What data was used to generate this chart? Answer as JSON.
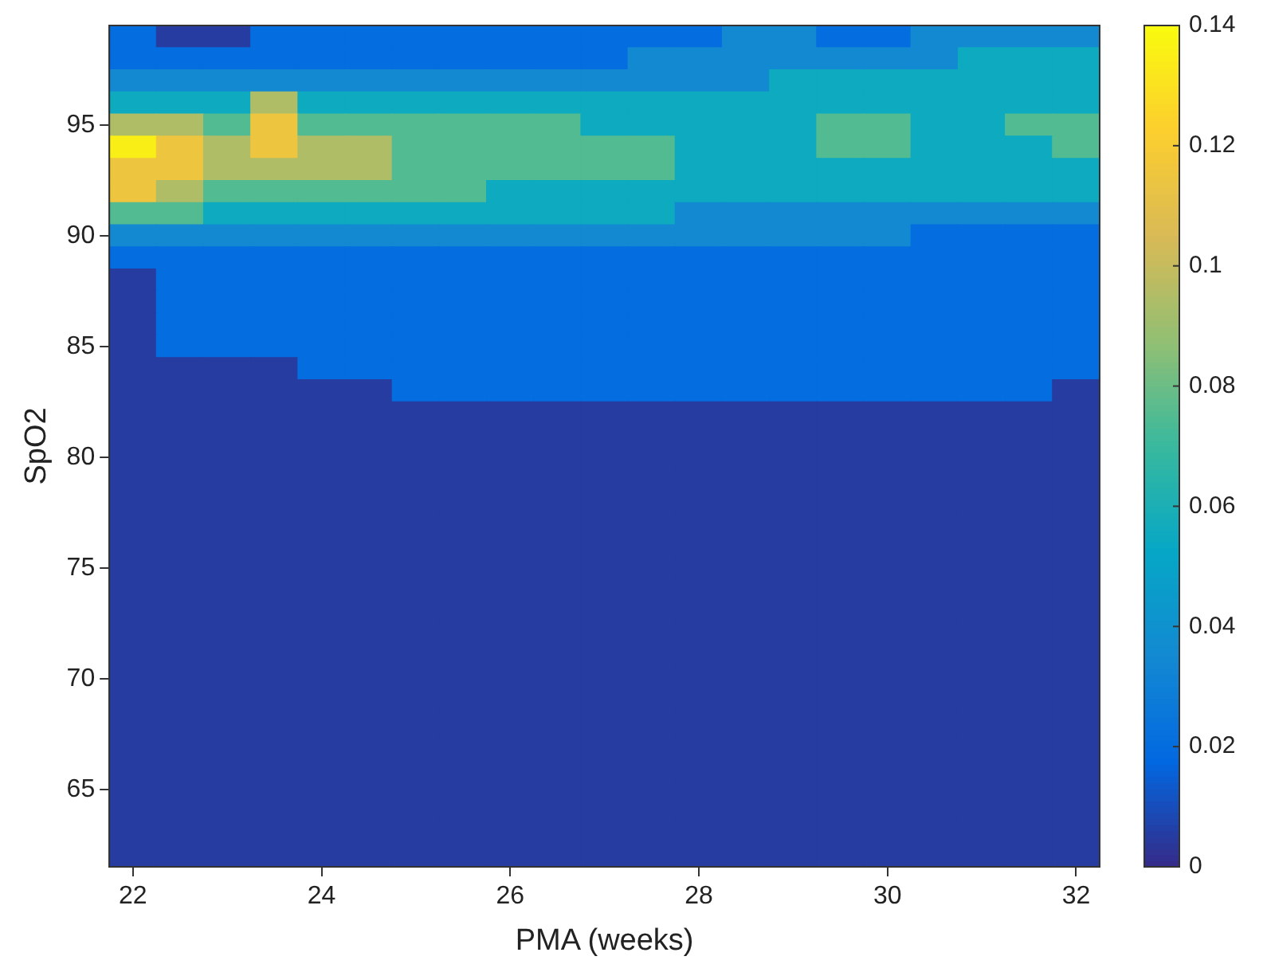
{
  "chart_data": {
    "type": "heatmap",
    "xlabel": "PMA (weeks)",
    "ylabel": "SpO2",
    "categories": [
      "22",
      null,
      null,
      null,
      "24",
      null,
      null,
      null,
      "26",
      null,
      null,
      null,
      "28",
      null,
      null,
      null,
      "30",
      null,
      null,
      null,
      "32"
    ],
    "y_categories": [
      null,
      null,
      null,
      null,
      "95",
      null,
      null,
      null,
      null,
      "90",
      null,
      null,
      null,
      null,
      "85",
      null,
      null,
      null,
      null,
      "80",
      null,
      null,
      null,
      null,
      "75",
      null,
      null,
      null,
      null,
      "70",
      null,
      null,
      null,
      null,
      "65",
      null,
      null,
      null
    ],
    "cells": [
      [
        0.02,
        0.005,
        0.005,
        0.02,
        0.02,
        0.02,
        0.02,
        0.02,
        0.02,
        0.02,
        0.02,
        0.02,
        0.02,
        0.035,
        0.035,
        0.02,
        0.02,
        0.035,
        0.035,
        0.035,
        0.035
      ],
      [
        0.02,
        0.02,
        0.02,
        0.02,
        0.02,
        0.02,
        0.02,
        0.02,
        0.02,
        0.02,
        0.02,
        0.035,
        0.035,
        0.035,
        0.035,
        0.035,
        0.035,
        0.035,
        0.055,
        0.055,
        0.055
      ],
      [
        0.035,
        0.035,
        0.035,
        0.035,
        0.035,
        0.035,
        0.035,
        0.035,
        0.035,
        0.035,
        0.035,
        0.035,
        0.035,
        0.035,
        0.055,
        0.055,
        0.055,
        0.055,
        0.055,
        0.055,
        0.055
      ],
      [
        0.055,
        0.055,
        0.055,
        0.095,
        0.055,
        0.055,
        0.055,
        0.055,
        0.055,
        0.055,
        0.055,
        0.055,
        0.055,
        0.055,
        0.055,
        0.055,
        0.055,
        0.055,
        0.055,
        0.055,
        0.055
      ],
      [
        0.095,
        0.095,
        0.075,
        0.115,
        0.075,
        0.075,
        0.075,
        0.075,
        0.075,
        0.075,
        0.055,
        0.055,
        0.055,
        0.055,
        0.055,
        0.075,
        0.075,
        0.055,
        0.055,
        0.075,
        0.075
      ],
      [
        0.135,
        0.115,
        0.095,
        0.115,
        0.095,
        0.095,
        0.075,
        0.075,
        0.075,
        0.075,
        0.075,
        0.075,
        0.055,
        0.055,
        0.055,
        0.075,
        0.075,
        0.055,
        0.055,
        0.055,
        0.075
      ],
      [
        0.115,
        0.115,
        0.095,
        0.095,
        0.095,
        0.095,
        0.075,
        0.075,
        0.075,
        0.075,
        0.075,
        0.075,
        0.055,
        0.055,
        0.055,
        0.055,
        0.055,
        0.055,
        0.055,
        0.055,
        0.055
      ],
      [
        0.115,
        0.095,
        0.075,
        0.075,
        0.075,
        0.075,
        0.075,
        0.075,
        0.055,
        0.055,
        0.055,
        0.055,
        0.055,
        0.055,
        0.055,
        0.055,
        0.055,
        0.055,
        0.055,
        0.055,
        0.055
      ],
      [
        0.075,
        0.075,
        0.055,
        0.055,
        0.055,
        0.055,
        0.055,
        0.055,
        0.055,
        0.055,
        0.055,
        0.055,
        0.035,
        0.035,
        0.035,
        0.035,
        0.035,
        0.035,
        0.035,
        0.035,
        0.035
      ],
      [
        0.035,
        0.035,
        0.035,
        0.035,
        0.035,
        0.035,
        0.035,
        0.035,
        0.035,
        0.035,
        0.035,
        0.035,
        0.035,
        0.035,
        0.035,
        0.035,
        0.035,
        0.02,
        0.02,
        0.02,
        0.02
      ],
      [
        0.02,
        0.02,
        0.02,
        0.02,
        0.02,
        0.02,
        0.02,
        0.02,
        0.02,
        0.02,
        0.02,
        0.02,
        0.02,
        0.02,
        0.02,
        0.02,
        0.02,
        0.02,
        0.02,
        0.02,
        0.02
      ],
      [
        0.005,
        0.02,
        0.02,
        0.02,
        0.02,
        0.02,
        0.02,
        0.02,
        0.02,
        0.02,
        0.02,
        0.02,
        0.02,
        0.02,
        0.02,
        0.02,
        0.02,
        0.02,
        0.02,
        0.02,
        0.02
      ],
      [
        0.005,
        0.02,
        0.02,
        0.02,
        0.02,
        0.02,
        0.02,
        0.02,
        0.02,
        0.02,
        0.02,
        0.02,
        0.02,
        0.02,
        0.02,
        0.02,
        0.02,
        0.02,
        0.02,
        0.02,
        0.02
      ],
      [
        0.005,
        0.02,
        0.02,
        0.02,
        0.02,
        0.02,
        0.02,
        0.02,
        0.02,
        0.02,
        0.02,
        0.02,
        0.02,
        0.02,
        0.02,
        0.02,
        0.02,
        0.02,
        0.02,
        0.02,
        0.02
      ],
      [
        0.005,
        0.02,
        0.02,
        0.02,
        0.02,
        0.02,
        0.02,
        0.02,
        0.02,
        0.02,
        0.02,
        0.02,
        0.02,
        0.02,
        0.02,
        0.02,
        0.02,
        0.02,
        0.02,
        0.02,
        0.02
      ],
      [
        0.005,
        0.005,
        0.005,
        0.005,
        0.02,
        0.02,
        0.02,
        0.02,
        0.02,
        0.02,
        0.02,
        0.02,
        0.02,
        0.02,
        0.02,
        0.02,
        0.02,
        0.02,
        0.02,
        0.02,
        0.02
      ],
      [
        0.005,
        0.005,
        0.005,
        0.005,
        0.005,
        0.005,
        0.02,
        0.02,
        0.02,
        0.02,
        0.02,
        0.02,
        0.02,
        0.02,
        0.02,
        0.02,
        0.02,
        0.02,
        0.02,
        0.02,
        0.005
      ],
      [
        0.005,
        0.005,
        0.005,
        0.005,
        0.005,
        0.005,
        0.005,
        0.005,
        0.005,
        0.005,
        0.005,
        0.005,
        0.005,
        0.005,
        0.005,
        0.005,
        0.005,
        0.005,
        0.005,
        0.005,
        0.005
      ],
      [
        0.005,
        0.005,
        0.005,
        0.005,
        0.005,
        0.005,
        0.005,
        0.005,
        0.005,
        0.005,
        0.005,
        0.005,
        0.005,
        0.005,
        0.005,
        0.005,
        0.005,
        0.005,
        0.005,
        0.005,
        0.005
      ],
      [
        0.005,
        0.005,
        0.005,
        0.005,
        0.005,
        0.005,
        0.005,
        0.005,
        0.005,
        0.005,
        0.005,
        0.005,
        0.005,
        0.005,
        0.005,
        0.005,
        0.005,
        0.005,
        0.005,
        0.005,
        0.005
      ],
      [
        0.005,
        0.005,
        0.005,
        0.005,
        0.005,
        0.005,
        0.005,
        0.005,
        0.005,
        0.005,
        0.005,
        0.005,
        0.005,
        0.005,
        0.005,
        0.005,
        0.005,
        0.005,
        0.005,
        0.005,
        0.005
      ],
      [
        0.005,
        0.005,
        0.005,
        0.005,
        0.005,
        0.005,
        0.005,
        0.005,
        0.005,
        0.005,
        0.005,
        0.005,
        0.005,
        0.005,
        0.005,
        0.005,
        0.005,
        0.005,
        0.005,
        0.005,
        0.005
      ],
      [
        0.005,
        0.005,
        0.005,
        0.005,
        0.005,
        0.005,
        0.005,
        0.005,
        0.005,
        0.005,
        0.005,
        0.005,
        0.005,
        0.005,
        0.005,
        0.005,
        0.005,
        0.005,
        0.005,
        0.005,
        0.005
      ],
      [
        0.005,
        0.005,
        0.005,
        0.005,
        0.005,
        0.005,
        0.005,
        0.005,
        0.005,
        0.005,
        0.005,
        0.005,
        0.005,
        0.005,
        0.005,
        0.005,
        0.005,
        0.005,
        0.005,
        0.005,
        0.005
      ],
      [
        0.005,
        0.005,
        0.005,
        0.005,
        0.005,
        0.005,
        0.005,
        0.005,
        0.005,
        0.005,
        0.005,
        0.005,
        0.005,
        0.005,
        0.005,
        0.005,
        0.005,
        0.005,
        0.005,
        0.005,
        0.005
      ],
      [
        0.005,
        0.005,
        0.005,
        0.005,
        0.005,
        0.005,
        0.005,
        0.005,
        0.005,
        0.005,
        0.005,
        0.005,
        0.005,
        0.005,
        0.005,
        0.005,
        0.005,
        0.005,
        0.005,
        0.005,
        0.005
      ],
      [
        0.005,
        0.005,
        0.005,
        0.005,
        0.005,
        0.005,
        0.005,
        0.005,
        0.005,
        0.005,
        0.005,
        0.005,
        0.005,
        0.005,
        0.005,
        0.005,
        0.005,
        0.005,
        0.005,
        0.005,
        0.005
      ],
      [
        0.005,
        0.005,
        0.005,
        0.005,
        0.005,
        0.005,
        0.005,
        0.005,
        0.005,
        0.005,
        0.005,
        0.005,
        0.005,
        0.005,
        0.005,
        0.005,
        0.005,
        0.005,
        0.005,
        0.005,
        0.005
      ],
      [
        0.005,
        0.005,
        0.005,
        0.005,
        0.005,
        0.005,
        0.005,
        0.005,
        0.005,
        0.005,
        0.005,
        0.005,
        0.005,
        0.005,
        0.005,
        0.005,
        0.005,
        0.005,
        0.005,
        0.005,
        0.005
      ],
      [
        0.005,
        0.005,
        0.005,
        0.005,
        0.005,
        0.005,
        0.005,
        0.005,
        0.005,
        0.005,
        0.005,
        0.005,
        0.005,
        0.005,
        0.005,
        0.005,
        0.005,
        0.005,
        0.005,
        0.005,
        0.005
      ],
      [
        0.005,
        0.005,
        0.005,
        0.005,
        0.005,
        0.005,
        0.005,
        0.005,
        0.005,
        0.005,
        0.005,
        0.005,
        0.005,
        0.005,
        0.005,
        0.005,
        0.005,
        0.005,
        0.005,
        0.005,
        0.005
      ],
      [
        0.005,
        0.005,
        0.005,
        0.005,
        0.005,
        0.005,
        0.005,
        0.005,
        0.005,
        0.005,
        0.005,
        0.005,
        0.005,
        0.005,
        0.005,
        0.005,
        0.005,
        0.005,
        0.005,
        0.005,
        0.005
      ],
      [
        0.005,
        0.005,
        0.005,
        0.005,
        0.005,
        0.005,
        0.005,
        0.005,
        0.005,
        0.005,
        0.005,
        0.005,
        0.005,
        0.005,
        0.005,
        0.005,
        0.005,
        0.005,
        0.005,
        0.005,
        0.005
      ],
      [
        0.005,
        0.005,
        0.005,
        0.005,
        0.005,
        0.005,
        0.005,
        0.005,
        0.005,
        0.005,
        0.005,
        0.005,
        0.005,
        0.005,
        0.005,
        0.005,
        0.005,
        0.005,
        0.005,
        0.005,
        0.005
      ],
      [
        0.005,
        0.005,
        0.005,
        0.005,
        0.005,
        0.005,
        0.005,
        0.005,
        0.005,
        0.005,
        0.005,
        0.005,
        0.005,
        0.005,
        0.005,
        0.005,
        0.005,
        0.005,
        0.005,
        0.005,
        0.005
      ],
      [
        0.005,
        0.005,
        0.005,
        0.005,
        0.005,
        0.005,
        0.005,
        0.005,
        0.005,
        0.005,
        0.005,
        0.005,
        0.005,
        0.005,
        0.005,
        0.005,
        0.005,
        0.005,
        0.005,
        0.005,
        0.005
      ],
      [
        0.005,
        0.005,
        0.005,
        0.005,
        0.005,
        0.005,
        0.005,
        0.005,
        0.005,
        0.005,
        0.005,
        0.005,
        0.005,
        0.005,
        0.005,
        0.005,
        0.005,
        0.005,
        0.005,
        0.005,
        0.005
      ],
      [
        0.005,
        0.005,
        0.005,
        0.005,
        0.005,
        0.005,
        0.005,
        0.005,
        0.005,
        0.005,
        0.005,
        0.005,
        0.005,
        0.005,
        0.005,
        0.005,
        0.005,
        0.005,
        0.005,
        0.005,
        0.005
      ]
    ],
    "clim": [
      0,
      0.14
    ],
    "cticks": [
      0,
      0.02,
      0.04,
      0.06,
      0.08,
      0.1,
      0.12,
      0.14
    ]
  }
}
